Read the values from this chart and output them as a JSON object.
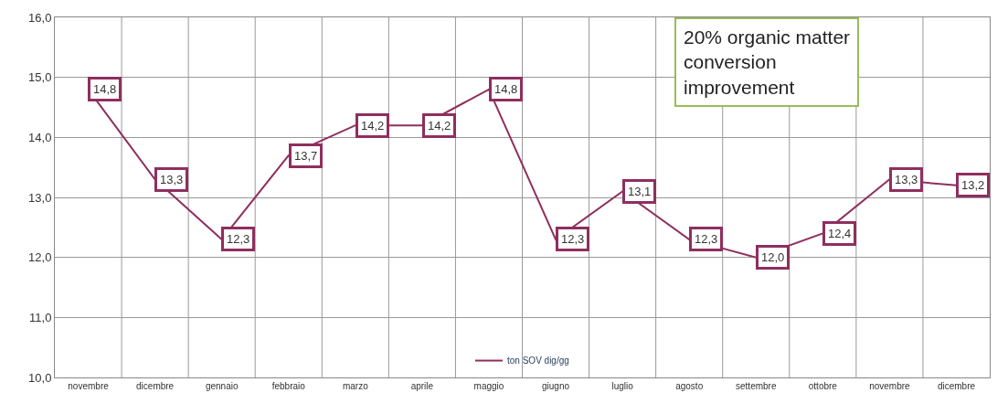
{
  "chart_data": {
    "type": "line",
    "categories": [
      "novembre",
      "dicembre",
      "gennaio",
      "febbraio",
      "marzo",
      "aprile",
      "maggio",
      "giugno",
      "luglio",
      "agosto",
      "settembre",
      "ottobre",
      "novembre",
      "dicembre"
    ],
    "series": [
      {
        "name": "ton SOV dig/gg",
        "color": "#8e2f5e",
        "values": [
          14.8,
          13.3,
          12.3,
          13.7,
          14.2,
          14.2,
          14.8,
          12.3,
          13.1,
          12.3,
          12.0,
          12.4,
          13.3,
          13.2
        ],
        "value_labels": [
          "14,8",
          "13,3",
          "12,3",
          "13,7",
          "14,2",
          "14,2",
          "14,8",
          "12,3",
          "13,1",
          "12,3",
          "12,0",
          "12,4",
          "13,3",
          "13,2"
        ]
      }
    ],
    "ylim": [
      10,
      16
    ],
    "yticks": [
      {
        "value": 10,
        "label": "10,0"
      },
      {
        "value": 11,
        "label": "11,0"
      },
      {
        "value": 12,
        "label": "12,0"
      },
      {
        "value": 13,
        "label": "13,0"
      },
      {
        "value": 14,
        "label": "14,0"
      },
      {
        "value": 15,
        "label": "15,0"
      },
      {
        "value": 16,
        "label": "16,0"
      }
    ],
    "annotations": [
      "20% organic matter conversion improvement"
    ],
    "grid": true,
    "legend": "bottom",
    "marker": "none",
    "line_style": "solid"
  }
}
